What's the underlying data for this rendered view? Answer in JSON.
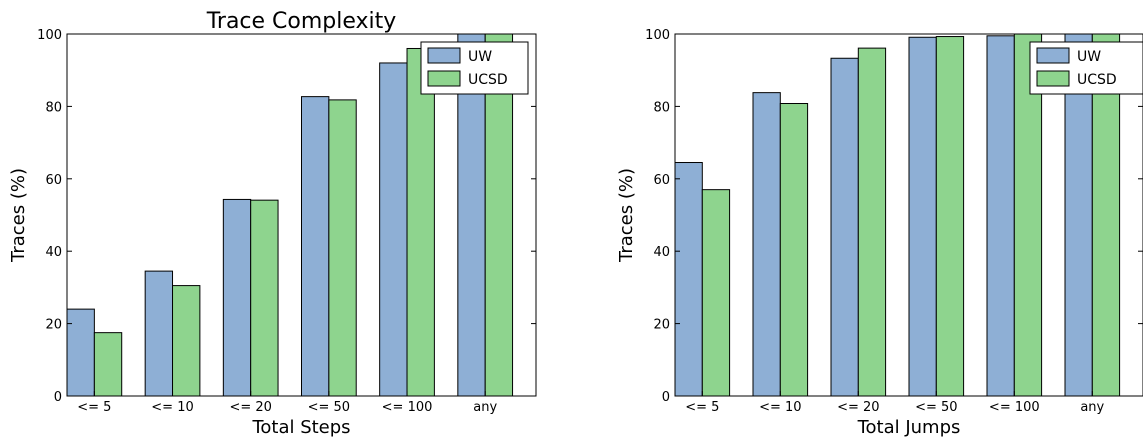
{
  "chart_data": [
    {
      "type": "bar",
      "title": "Trace Complexity",
      "xlabel": "Total Steps",
      "ylabel": "Traces (%)",
      "ylim": [
        0,
        100
      ],
      "yticks": [
        "0",
        "20",
        "40",
        "60",
        "80",
        "100"
      ],
      "categories": [
        "<= 5",
        "<= 10",
        "<= 20",
        "<= 50",
        "<= 100",
        "any"
      ],
      "series": [
        {
          "name": "UW",
          "color": "#8eafd5",
          "values": [
            24,
            34.5,
            54.3,
            82.7,
            92,
            100
          ]
        },
        {
          "name": "UCSD",
          "color": "#8ed48e",
          "values": [
            17.5,
            30.5,
            54.1,
            81.8,
            96,
            100
          ]
        }
      ],
      "legend_position": "top-right"
    },
    {
      "type": "bar",
      "title": "",
      "xlabel": "Total Jumps",
      "ylabel": "Traces (%)",
      "ylim": [
        0,
        100
      ],
      "yticks": [
        "0",
        "20",
        "40",
        "60",
        "80",
        "100"
      ],
      "categories": [
        "<= 5",
        "<= 10",
        "<= 20",
        "<= 50",
        "<= 100",
        "any"
      ],
      "series": [
        {
          "name": "UW",
          "color": "#8eafd5",
          "values": [
            64.5,
            83.8,
            93.3,
            99.1,
            99.5,
            100
          ]
        },
        {
          "name": "UCSD",
          "color": "#8ed48e",
          "values": [
            57,
            80.8,
            96.1,
            99.3,
            100,
            100
          ]
        }
      ],
      "legend_position": "top-right"
    }
  ]
}
